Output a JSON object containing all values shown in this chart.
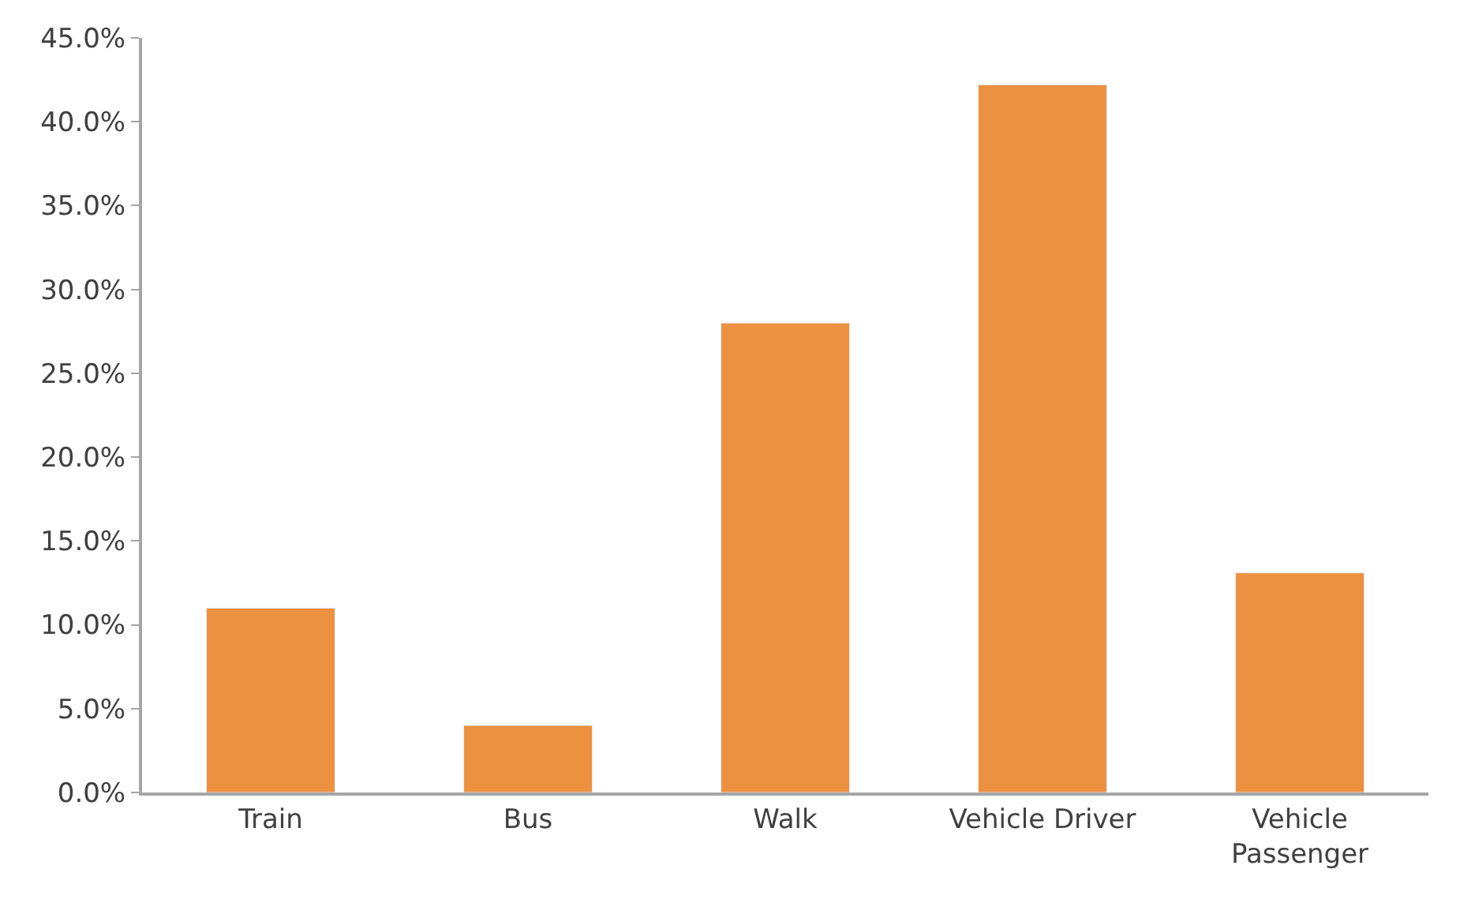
{
  "chart_data": {
    "type": "bar",
    "categories": [
      "Train",
      "Bus",
      "Walk",
      "Vehicle Driver",
      "Vehicle Passenger"
    ],
    "values": [
      11.0,
      4.0,
      28.0,
      42.2,
      13.1
    ],
    "color": "#ec9140",
    "ylim": [
      0,
      45
    ],
    "yticks": [
      {
        "value": 0,
        "label": "0.0%"
      },
      {
        "value": 5,
        "label": "5.0%"
      },
      {
        "value": 10,
        "label": "10.0%"
      },
      {
        "value": 15,
        "label": "15.0%"
      },
      {
        "value": 20,
        "label": "20.0%"
      },
      {
        "value": 25,
        "label": "25.0%"
      },
      {
        "value": 30,
        "label": "30.0%"
      },
      {
        "value": 35,
        "label": "35.0%"
      },
      {
        "value": 40,
        "label": "40.0%"
      },
      {
        "value": 45,
        "label": "45.0%"
      }
    ],
    "orientation": "vertical"
  }
}
